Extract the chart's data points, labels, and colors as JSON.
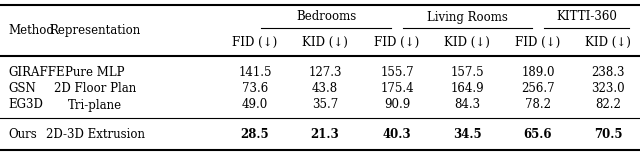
{
  "col_headers_top": [
    "Bedrooms",
    "Living Rooms",
    "KITTI-360"
  ],
  "col_headers_sub": [
    "FID (↓)",
    "KID (↓)",
    "FID (↓)",
    "KID (↓)",
    "FID (↓)",
    "KID (↓)"
  ],
  "rows": [
    {
      "method": "GIRAFFE",
      "repr": "Pure MLP",
      "vals": [
        "141.5",
        "127.3",
        "155.7",
        "157.5",
        "189.0",
        "238.3"
      ],
      "bold": false
    },
    {
      "method": "GSN",
      "repr": "2D Floor Plan",
      "vals": [
        "73.6",
        "43.8",
        "175.4",
        "164.9",
        "256.7",
        "323.0"
      ],
      "bold": false
    },
    {
      "method": "EG3D",
      "repr": "Tri-plane",
      "vals": [
        "49.0",
        "35.7",
        "90.9",
        "84.3",
        "78.2",
        "82.2"
      ],
      "bold": false
    },
    {
      "method": "Ours",
      "repr": "2D-3D Extrusion",
      "vals": [
        "28.5",
        "21.3",
        "40.3",
        "34.5",
        "65.6",
        "70.5"
      ],
      "bold": true
    }
  ],
  "bg_color": "#ffffff",
  "text_color": "#000000",
  "line_color": "#000000",
  "fig_width": 6.4,
  "fig_height": 1.55,
  "dpi": 100
}
